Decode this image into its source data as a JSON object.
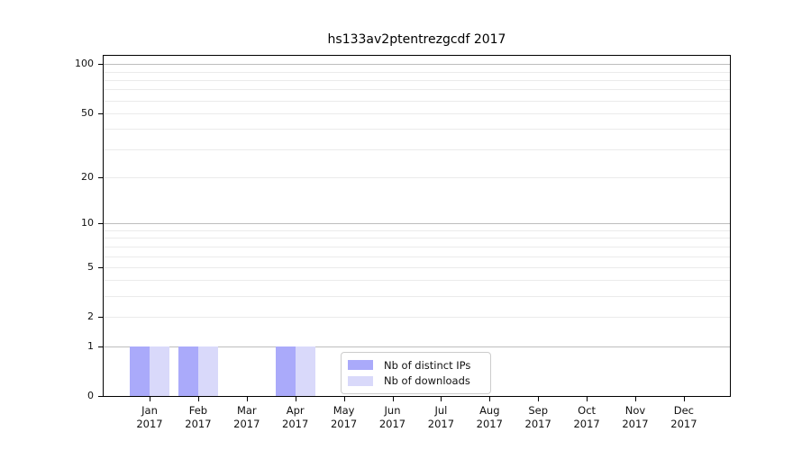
{
  "chart_data": {
    "type": "bar",
    "title": "hs133av2ptentrezgcdf 2017",
    "categories": [
      "Jan",
      "Feb",
      "Mar",
      "Apr",
      "May",
      "Jun",
      "Jul",
      "Aug",
      "Sep",
      "Oct",
      "Nov",
      "Dec"
    ],
    "year": "2017",
    "series": [
      {
        "name": "Nb of distinct IPs",
        "color": "#aaaafa",
        "values": [
          1,
          1,
          0,
          1,
          0,
          0,
          0,
          0,
          0,
          0,
          0,
          0
        ]
      },
      {
        "name": "Nb of downloads",
        "color": "#d9d9fa",
        "values": [
          1,
          1,
          0,
          1,
          0,
          0,
          0,
          0,
          0,
          0,
          0,
          0
        ]
      }
    ],
    "xlabel": "",
    "ylabel": "",
    "yscale": "log1p",
    "ylim": [
      0,
      115
    ],
    "ytick_values": [
      0,
      1,
      2,
      5,
      10,
      20,
      50,
      100
    ],
    "ytick_labels": [
      "0",
      "1",
      "2",
      "5",
      "10",
      "20",
      "50",
      "100"
    ],
    "major_grid_values": [
      1,
      10,
      100
    ],
    "minor_grid_values": [
      2,
      3,
      4,
      5,
      6,
      7,
      8,
      9,
      20,
      30,
      40,
      50,
      60,
      70,
      80,
      90
    ],
    "grid": "on",
    "legend_position": "lower center-left inside plot",
    "colors": {
      "axis": "#000000",
      "major_grid": "#bdbdbd",
      "minor_grid": "#ebebeb",
      "text": "#111111",
      "legend_border": "#cccccc"
    }
  }
}
